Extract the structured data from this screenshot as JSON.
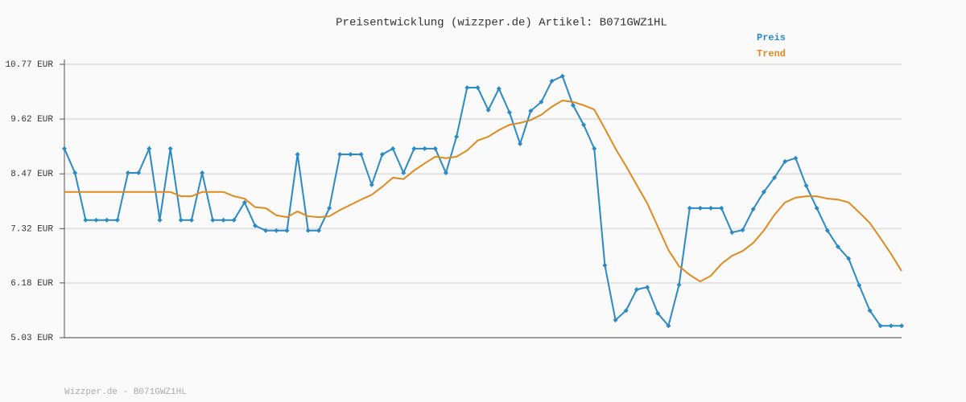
{
  "chart_data": {
    "type": "line",
    "title": "Preisentwicklung (wizzper.de) Artikel: B071GWZ1HL",
    "footer": "Wizzper.de - B071GWZ1HL",
    "ylim": [
      5.03,
      10.77
    ],
    "yticks": [
      {
        "value": 5.03,
        "label": "5.03 EUR"
      },
      {
        "value": 6.18,
        "label": "6.18 EUR"
      },
      {
        "value": 7.32,
        "label": "7.32 EUR"
      },
      {
        "value": 8.47,
        "label": "8.47 EUR"
      },
      {
        "value": 9.62,
        "label": "9.62 EUR"
      },
      {
        "value": 10.77,
        "label": "10.77 EUR"
      }
    ],
    "grid": true,
    "legend": "top-right",
    "series": [
      {
        "name": "Preis",
        "color": "#2a8ac6",
        "markers": true,
        "values": [
          9.0,
          8.49,
          7.5,
          7.5,
          7.5,
          7.5,
          8.49,
          8.49,
          9.0,
          7.5,
          9.0,
          7.5,
          7.5,
          8.49,
          7.5,
          7.5,
          7.5,
          7.87,
          7.38,
          7.28,
          7.28,
          7.28,
          8.88,
          7.28,
          7.28,
          7.75,
          8.88,
          8.88,
          8.88,
          8.24,
          8.88,
          9.0,
          8.49,
          9.0,
          9.0,
          9.0,
          8.49,
          9.25,
          10.28,
          10.28,
          9.81,
          10.26,
          9.76,
          9.1,
          9.79,
          9.98,
          10.42,
          10.52,
          9.91,
          9.5,
          9.0,
          6.55,
          5.4,
          5.6,
          6.04,
          6.09,
          5.54,
          5.28,
          6.14,
          7.75,
          7.75,
          7.75,
          7.75,
          7.24,
          7.29,
          7.73,
          8.09,
          8.39,
          8.73,
          8.8,
          8.22,
          7.75,
          7.28,
          6.94,
          6.69,
          6.13,
          5.6,
          5.28,
          5.28,
          5.28
        ]
      },
      {
        "name": "Trend",
        "color": "#e08a1e",
        "markers": false,
        "values": [
          8.09,
          8.09,
          8.09,
          8.09,
          8.09,
          8.09,
          8.09,
          8.09,
          8.09,
          8.09,
          8.09,
          8.0,
          8.0,
          8.09,
          8.09,
          8.09,
          8.0,
          7.95,
          7.77,
          7.75,
          7.6,
          7.56,
          7.68,
          7.58,
          7.56,
          7.58,
          7.71,
          7.82,
          7.93,
          8.03,
          8.2,
          8.39,
          8.36,
          8.54,
          8.69,
          8.83,
          8.8,
          8.83,
          8.96,
          9.17,
          9.25,
          9.39,
          9.5,
          9.54,
          9.6,
          9.71,
          9.88,
          10.01,
          9.98,
          9.91,
          9.82,
          9.42,
          9.0,
          8.63,
          8.24,
          7.85,
          7.36,
          6.87,
          6.53,
          6.35,
          6.21,
          6.33,
          6.58,
          6.75,
          6.85,
          7.02,
          7.28,
          7.61,
          7.87,
          7.97,
          8.0,
          8.0,
          7.95,
          7.93,
          7.87,
          7.66,
          7.44,
          7.12,
          6.79,
          6.43
        ]
      }
    ]
  }
}
